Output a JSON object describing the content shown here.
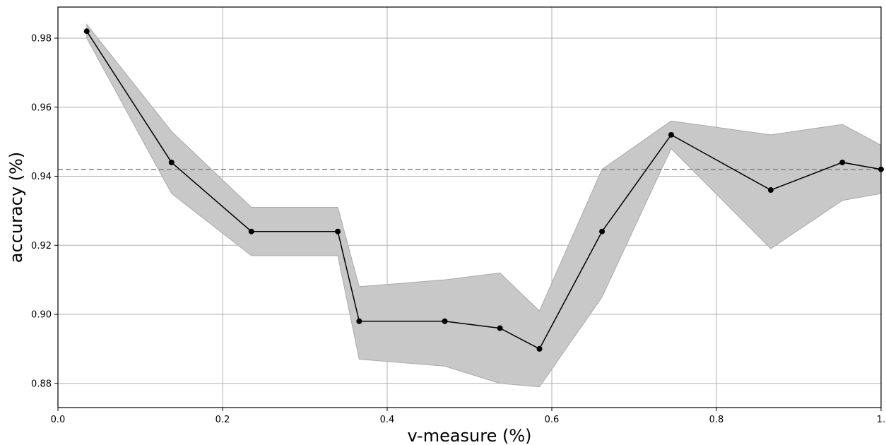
{
  "chart_data": {
    "type": "line",
    "title": "",
    "xlabel": "v-measure (%)",
    "ylabel": "accuracy (%)",
    "xlim": [
      0.0,
      1.0
    ],
    "ylim": [
      0.873,
      0.989
    ],
    "xticks": [
      0.0,
      0.2,
      0.4,
      0.6,
      0.8,
      1.0
    ],
    "xtick_labels": [
      "0.0",
      "0.2",
      "0.4",
      "0.6",
      "0.8",
      "1."
    ],
    "yticks": [
      0.88,
      0.9,
      0.92,
      0.94,
      0.96,
      0.98
    ],
    "ytick_labels": [
      "0.88",
      "0.90",
      "0.92",
      "0.94",
      "0.96",
      "0.98"
    ],
    "grid": true,
    "reference_line": {
      "y": 0.942,
      "style": "dashed",
      "color": "#808080"
    },
    "series": [
      {
        "marker": "circle",
        "color": "#000000",
        "x": [
          0.035,
          0.138,
          0.235,
          0.34,
          0.366,
          0.47,
          0.537,
          0.585,
          0.661,
          0.745,
          0.866,
          0.953,
          1.0
        ],
        "y": [
          0.982,
          0.944,
          0.924,
          0.924,
          0.898,
          0.898,
          0.896,
          0.89,
          0.924,
          0.952,
          0.936,
          0.944,
          0.942
        ],
        "band_upper": [
          0.984,
          0.953,
          0.931,
          0.931,
          0.908,
          0.91,
          0.912,
          0.901,
          0.942,
          0.956,
          0.952,
          0.955,
          0.949
        ],
        "band_lower": [
          0.98,
          0.935,
          0.917,
          0.917,
          0.887,
          0.885,
          0.88,
          0.879,
          0.905,
          0.948,
          0.919,
          0.933,
          0.935
        ],
        "band_color": "#c8c8c8"
      }
    ]
  }
}
